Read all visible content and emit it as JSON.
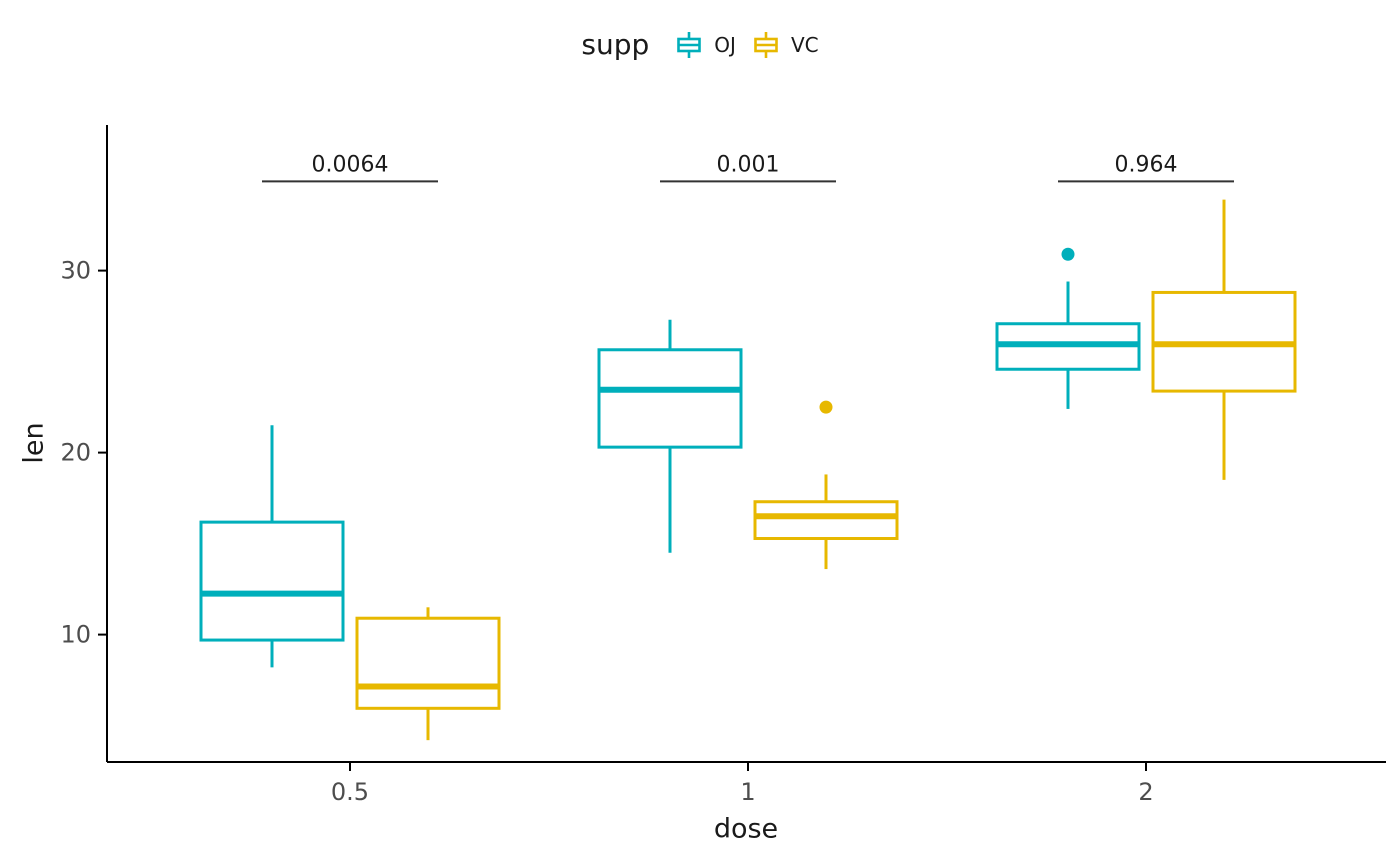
{
  "legend": {
    "title": "supp",
    "entries": [
      {
        "label": "OJ",
        "color": "#00AFBB"
      },
      {
        "label": "VC",
        "color": "#E7B800"
      }
    ]
  },
  "axes": {
    "x": {
      "label": "dose",
      "ticks": [
        "0.5",
        "1",
        "2"
      ]
    },
    "y": {
      "label": "len",
      "ticks": [
        10,
        20,
        30
      ]
    }
  },
  "chart_data": {
    "type": "boxplot",
    "title": "",
    "xlabel": "dose",
    "ylabel": "len",
    "categories": [
      "0.5",
      "1",
      "2"
    ],
    "ylim": [
      3,
      38
    ],
    "yticks": [
      10,
      20,
      30
    ],
    "grid": false,
    "legend_position": "top",
    "legend_title": "supp",
    "series": [
      {
        "name": "OJ",
        "color": "#00AFBB",
        "boxes": [
          {
            "category": "0.5",
            "whisker_low": 8.2,
            "q1": 9.7,
            "median": 12.25,
            "q3": 16.18,
            "whisker_high": 21.5,
            "outliers": []
          },
          {
            "category": "1",
            "whisker_low": 14.5,
            "q1": 20.3,
            "median": 23.45,
            "q3": 25.65,
            "whisker_high": 27.3,
            "outliers": []
          },
          {
            "category": "2",
            "whisker_low": 22.4,
            "q1": 24.58,
            "median": 25.95,
            "q3": 27.08,
            "whisker_high": 29.4,
            "outliers": [
              30.9
            ]
          }
        ]
      },
      {
        "name": "VC",
        "color": "#E7B800",
        "boxes": [
          {
            "category": "0.5",
            "whisker_low": 4.2,
            "q1": 5.95,
            "median": 7.15,
            "q3": 10.9,
            "whisker_high": 11.5,
            "outliers": []
          },
          {
            "category": "1",
            "whisker_low": 13.6,
            "q1": 15.28,
            "median": 16.5,
            "q3": 17.3,
            "whisker_high": 18.8,
            "outliers": [
              22.5
            ]
          },
          {
            "category": "2",
            "whisker_low": 18.5,
            "q1": 23.38,
            "median": 25.95,
            "q3": 28.8,
            "whisker_high": 33.9,
            "outliers": []
          }
        ]
      }
    ],
    "comparisons": [
      {
        "category": "0.5",
        "p_value": "0.0064",
        "bracket_y": 34.9
      },
      {
        "category": "1",
        "p_value": "0.001",
        "bracket_y": 34.9
      },
      {
        "category": "2",
        "p_value": "0.964",
        "bracket_y": 34.9
      }
    ]
  }
}
